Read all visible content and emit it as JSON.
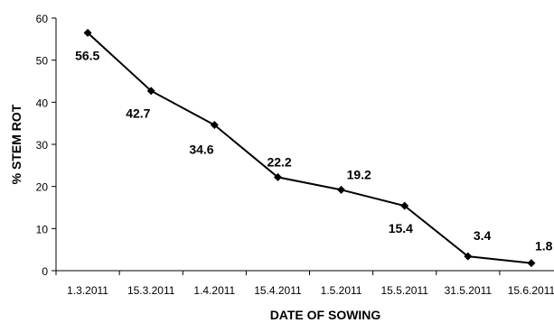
{
  "chart_data": {
    "type": "line",
    "categories": [
      "1.3.2011",
      "15.3.2011",
      "1.4.2011",
      "15.4.2011",
      "1.5.2011",
      "15.5.2011",
      "31.5.2011",
      "15.6.2011"
    ],
    "series": [
      {
        "values": [
          56.5,
          42.7,
          34.6,
          22.2,
          19.2,
          15.4,
          3.4,
          1.8
        ]
      }
    ],
    "data_labels": [
      "56.5",
      "42.7",
      "34.6",
      "22.2",
      "19.2",
      "15.4",
      "3.4",
      "1.8"
    ],
    "xlabel": "DATE OF SOWING",
    "ylabel": "% STEM ROT",
    "ylim": [
      0,
      60
    ],
    "yticks": [
      0,
      10,
      20,
      30,
      40,
      50,
      60
    ],
    "grid": false,
    "legend": "none",
    "line_color": "#000000",
    "marker": "diamond"
  }
}
